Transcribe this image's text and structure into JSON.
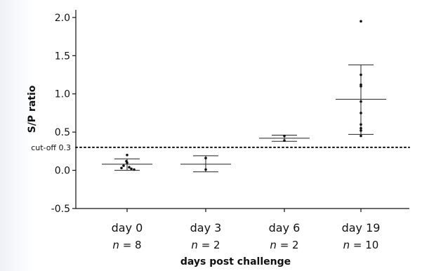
{
  "chart_data": {
    "type": "scatter",
    "ylabel": "S/P ratio",
    "xlabel": "days post challenge",
    "ylim": [
      -0.5,
      2.1
    ],
    "yticks": [
      "-0.5",
      "0.0",
      "0.5",
      "1.0",
      "1.5",
      "2.0"
    ],
    "ytick_values": [
      -0.5,
      0.0,
      0.5,
      1.0,
      1.5,
      2.0
    ],
    "cutoff": {
      "label": "cut-off 0.3",
      "value": 0.3
    },
    "categories": [
      "day 0",
      "day 3",
      "day 6",
      "day 19"
    ],
    "n_labels": [
      "n = 8",
      "n = 2",
      "n = 2",
      "n = 10"
    ],
    "groups": [
      {
        "category": "day 0",
        "n": 8,
        "mean": 0.08,
        "sd_low": 0.0,
        "sd_high": 0.15,
        "points": [
          0.2,
          0.12,
          0.1,
          0.06,
          0.04,
          0.03,
          0.02,
          0.01
        ]
      },
      {
        "category": "day 3",
        "n": 2,
        "mean": 0.08,
        "sd_low": -0.02,
        "sd_high": 0.19,
        "points": [
          0.16,
          0.01
        ]
      },
      {
        "category": "day 6",
        "n": 2,
        "mean": 0.42,
        "sd_low": 0.38,
        "sd_high": 0.46,
        "points": [
          0.45,
          0.39
        ]
      },
      {
        "category": "day 19",
        "n": 10,
        "mean": 0.93,
        "sd_low": 0.47,
        "sd_high": 1.38,
        "points": [
          1.95,
          1.25,
          1.12,
          1.1,
          0.9,
          0.75,
          0.6,
          0.55,
          0.52,
          0.45
        ]
      }
    ],
    "grid": false,
    "legend": "none"
  }
}
